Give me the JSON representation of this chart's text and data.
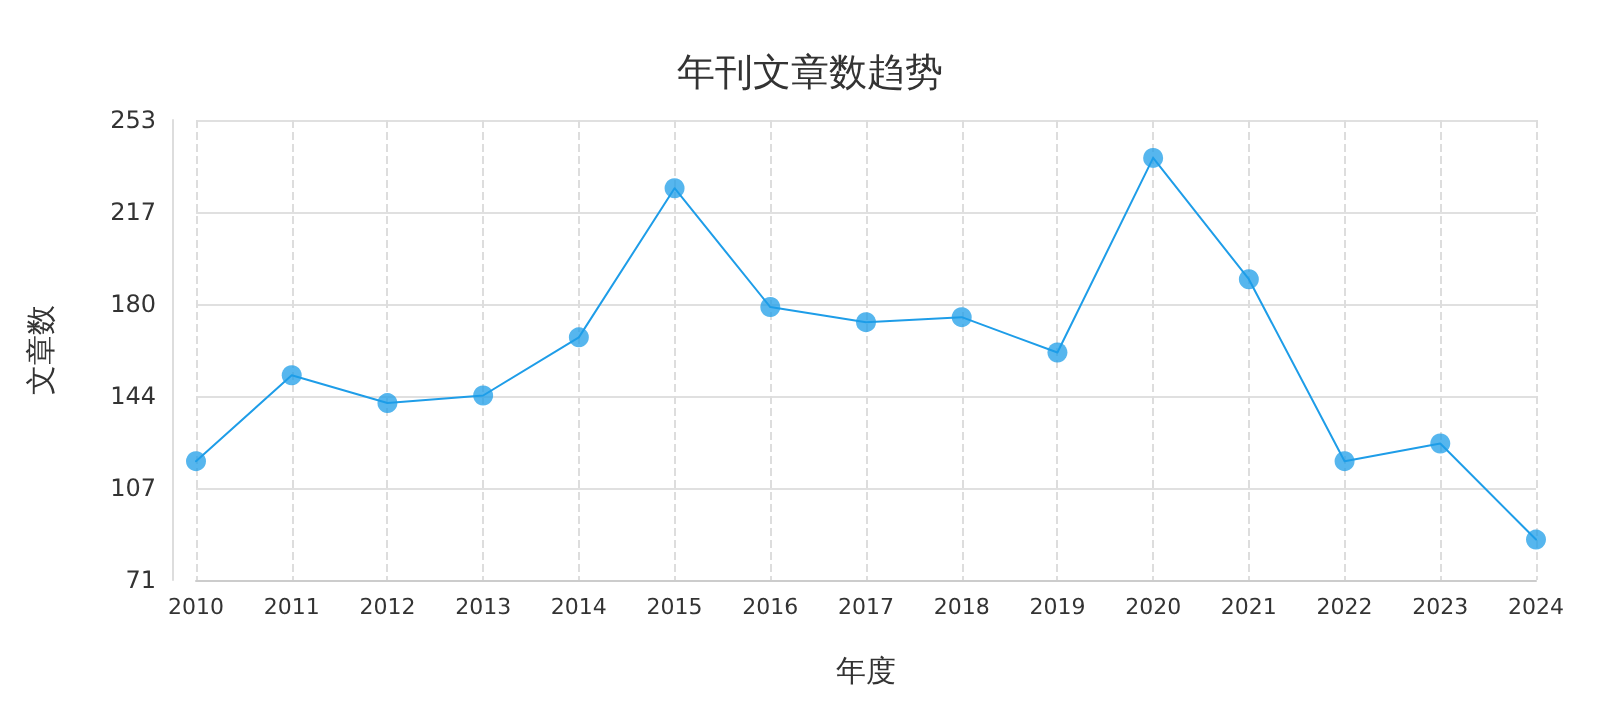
{
  "chart_data": {
    "type": "line",
    "title": "年刊文章数趋势",
    "xlabel": "年度",
    "ylabel": "文章数",
    "categories": [
      "2010",
      "2011",
      "2012",
      "2013",
      "2014",
      "2015",
      "2016",
      "2017",
      "2018",
      "2019",
      "2020",
      "2021",
      "2022",
      "2023",
      "2024"
    ],
    "series": [
      {
        "color": "#1e9de8",
        "values": [
          118,
          152,
          141,
          144,
          167,
          226,
          179,
          173,
          175,
          161,
          238,
          190,
          118,
          125,
          87
        ]
      }
    ],
    "ylim": [
      71,
      253
    ],
    "yticks": [
      {
        "value": 71,
        "label": "71"
      },
      {
        "value": 107.4,
        "label": "107"
      },
      {
        "value": 143.8,
        "label": "144"
      },
      {
        "value": 180.2,
        "label": "180"
      },
      {
        "value": 216.6,
        "label": "217"
      },
      {
        "value": 253,
        "label": "253"
      }
    ],
    "grid": true,
    "marker": "circle",
    "line_style": "solid"
  }
}
